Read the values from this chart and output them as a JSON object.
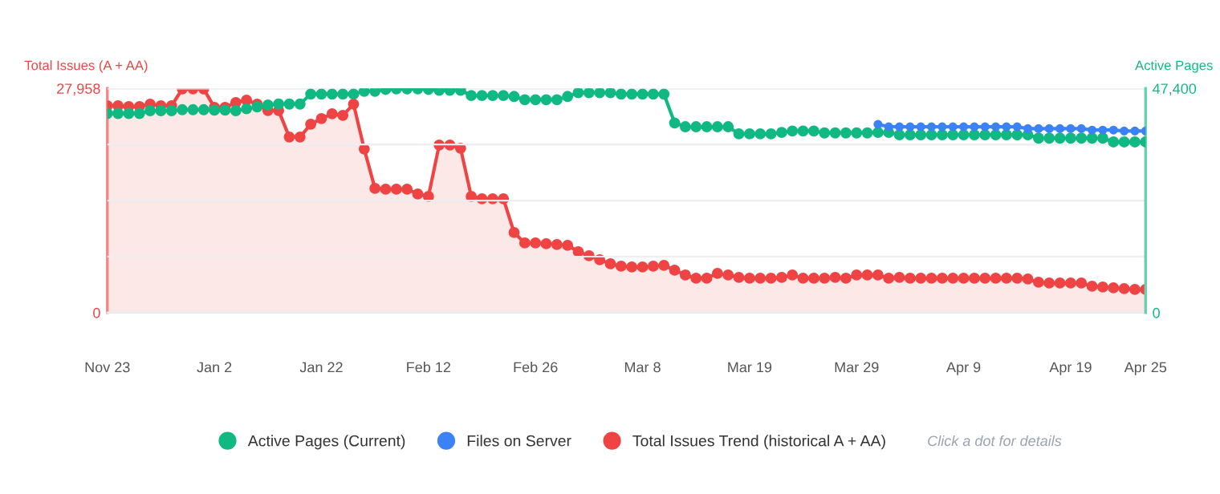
{
  "chart_data": {
    "type": "line",
    "ylabel": "Total Issues (A + AA)",
    "y2label": "Active Pages",
    "categories": [
      "Nov 23",
      null,
      null,
      null,
      null,
      null,
      null,
      null,
      null,
      null,
      "Jan 2",
      null,
      null,
      null,
      null,
      null,
      null,
      null,
      null,
      null,
      "Jan 22",
      null,
      null,
      null,
      null,
      null,
      null,
      null,
      null,
      null,
      "Feb 12",
      null,
      null,
      null,
      null,
      null,
      null,
      null,
      null,
      null,
      "Feb 26",
      null,
      null,
      null,
      null,
      null,
      null,
      null,
      null,
      null,
      "Mar 8",
      null,
      null,
      null,
      null,
      null,
      null,
      null,
      null,
      null,
      "Mar 19",
      null,
      null,
      null,
      null,
      null,
      null,
      null,
      null,
      null,
      "Mar 29",
      null,
      null,
      null,
      null,
      null,
      null,
      null,
      null,
      null,
      "Apr 9",
      null,
      null,
      null,
      null,
      null,
      null,
      null,
      null,
      null,
      "Apr 19",
      null,
      null,
      null,
      null,
      null,
      null,
      "Apr 25"
    ],
    "series": [
      {
        "name": "Active Pages (Current)",
        "color": "#10b981",
        "axis": "y2",
        "values": [
          42100,
          42100,
          42100,
          42100,
          42700,
          42700,
          42700,
          42900,
          42900,
          42900,
          42800,
          42800,
          42700,
          43100,
          43500,
          43900,
          44100,
          44100,
          44100,
          46200,
          46200,
          46200,
          46200,
          46200,
          46800,
          46800,
          47200,
          47300,
          47300,
          47300,
          47200,
          47000,
          47000,
          47000,
          45900,
          45900,
          45900,
          45900,
          45700,
          45000,
          45000,
          45000,
          45000,
          45700,
          46500,
          46500,
          46500,
          46500,
          46200,
          46200,
          46200,
          46200,
          46200,
          40100,
          39300,
          39300,
          39300,
          39300,
          39300,
          37800,
          37800,
          37800,
          37800,
          38100,
          38400,
          38400,
          38400,
          38000,
          38000,
          38000,
          38000,
          38000,
          38100,
          38100,
          37600,
          37600,
          37600,
          37600,
          37600,
          37600,
          37600,
          37600,
          37600,
          37600,
          37600,
          37600,
          37600,
          36900,
          36900,
          36900,
          36900,
          36900,
          36900,
          36900,
          36100,
          36100,
          36100,
          36100
        ]
      },
      {
        "name": "Files on Server",
        "color": "#3b82f6",
        "axis": "y2",
        "values": [
          null,
          null,
          null,
          null,
          null,
          null,
          null,
          null,
          null,
          null,
          null,
          null,
          null,
          null,
          null,
          null,
          null,
          null,
          null,
          null,
          null,
          null,
          null,
          null,
          null,
          null,
          null,
          null,
          null,
          null,
          null,
          null,
          null,
          null,
          null,
          null,
          null,
          null,
          null,
          null,
          null,
          null,
          null,
          null,
          null,
          null,
          null,
          null,
          null,
          null,
          null,
          null,
          null,
          null,
          null,
          null,
          null,
          null,
          null,
          null,
          null,
          null,
          null,
          null,
          null,
          null,
          null,
          null,
          null,
          null,
          null,
          null,
          39800,
          39300,
          39300,
          39300,
          39300,
          39300,
          39300,
          39300,
          39300,
          39300,
          39300,
          39300,
          39300,
          39300,
          38900,
          38900,
          38900,
          38900,
          38900,
          38900,
          38600,
          38600,
          38600,
          38400,
          38400,
          38400
        ]
      },
      {
        "name": "Total Issues Trend (historical A + AA)",
        "color": "#ef4444",
        "type": "area",
        "axis": "y",
        "values": [
          25800,
          25800,
          25700,
          25700,
          26000,
          25800,
          25800,
          27900,
          27900,
          27900,
          25600,
          25600,
          26200,
          26500,
          26000,
          25200,
          25200,
          21900,
          21900,
          23500,
          24200,
          24800,
          24600,
          26000,
          20400,
          15500,
          15400,
          15400,
          15400,
          14800,
          14500,
          20900,
          20900,
          20500,
          14500,
          14200,
          14200,
          14200,
          10000,
          8700,
          8700,
          8600,
          8500,
          8400,
          7600,
          7100,
          6600,
          6100,
          5800,
          5700,
          5700,
          5800,
          5900,
          5300,
          4700,
          4300,
          4300,
          4900,
          4700,
          4400,
          4300,
          4300,
          4300,
          4400,
          4700,
          4300,
          4300,
          4300,
          4400,
          4300,
          4700,
          4700,
          4700,
          4300,
          4400,
          4300,
          4300,
          4300,
          4300,
          4300,
          4300,
          4300,
          4300,
          4300,
          4300,
          4300,
          4200,
          3800,
          3700,
          3700,
          3700,
          3700,
          3300,
          3200,
          3100,
          3000,
          2900,
          2900
        ]
      }
    ],
    "ylim": [
      0,
      27958
    ],
    "yticks": [
      0,
      {
        "value": 6989.5,
        "label": null
      },
      {
        "value": 13979,
        "label": null
      },
      {
        "value": 20968.5,
        "label": null
      },
      {
        "value": 27958,
        "label": "27,958"
      }
    ],
    "y2lim": [
      0,
      47400
    ],
    "y2ticks": [
      0,
      {
        "value": 11850,
        "label": null
      },
      {
        "value": 23700,
        "label": null
      },
      {
        "value": 35550,
        "label": null
      },
      {
        "value": 47400,
        "label": "47,400"
      }
    ],
    "grid": "y",
    "marker": "circle",
    "legend": "bottom",
    "annotations": [
      "Click a dot for details"
    ]
  }
}
